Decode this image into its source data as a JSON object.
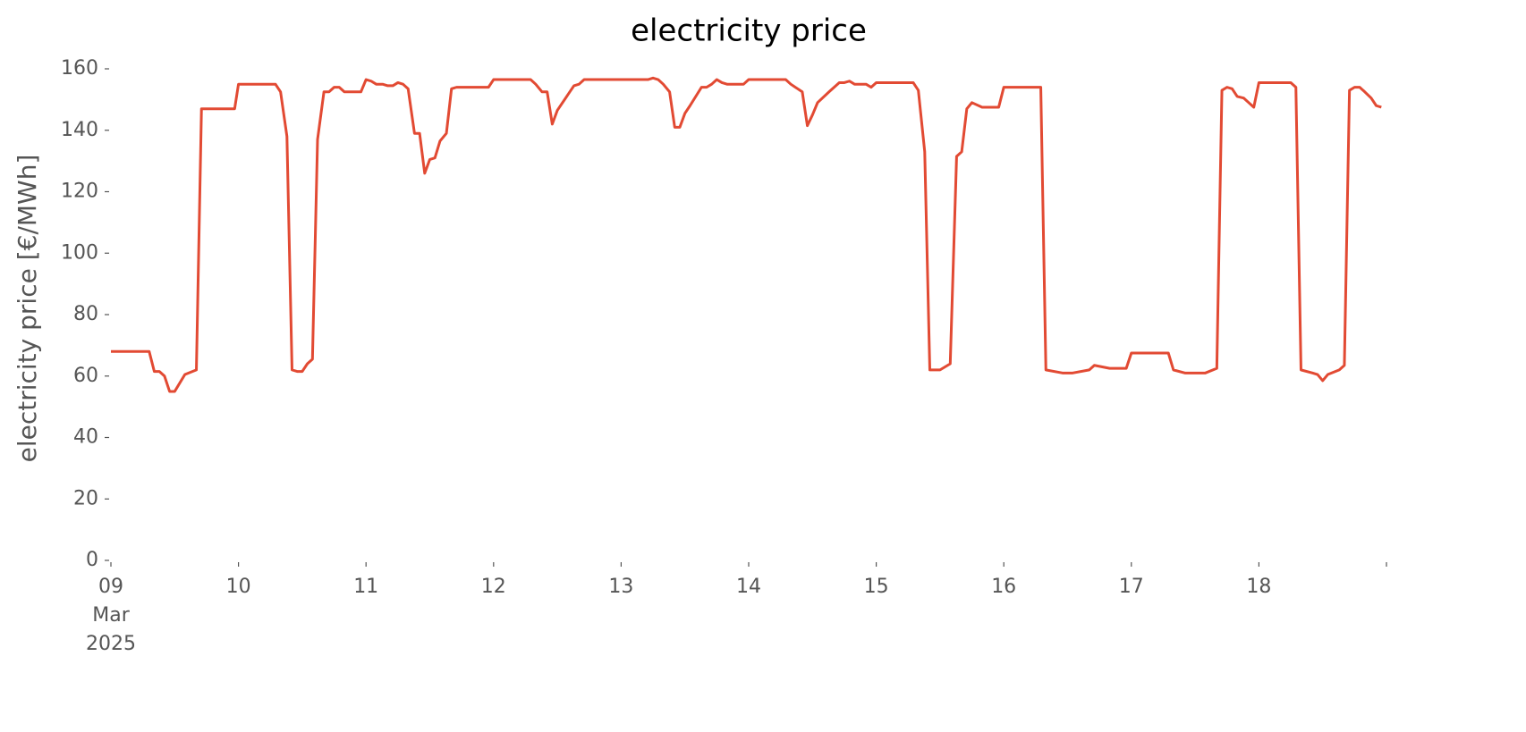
{
  "chart_data": {
    "type": "line",
    "title": "electricity price",
    "ylabel": "electricity price [€/MWh]",
    "x": [
      9.0,
      9.3,
      9.34,
      9.38,
      9.42,
      9.46,
      9.5,
      9.58,
      9.67,
      9.71,
      9.97,
      10.0,
      10.29,
      10.33,
      10.38,
      10.42,
      10.46,
      10.5,
      10.54,
      10.58,
      10.62,
      10.67,
      10.71,
      10.75,
      10.79,
      10.83,
      10.96,
      11.0,
      11.04,
      11.08,
      11.13,
      11.17,
      11.21,
      11.25,
      11.29,
      11.33,
      11.38,
      11.42,
      11.46,
      11.5,
      11.54,
      11.58,
      11.63,
      11.67,
      11.71,
      11.96,
      12.0,
      12.29,
      12.33,
      12.38,
      12.42,
      12.46,
      12.5,
      12.63,
      12.67,
      12.71,
      13.21,
      13.25,
      13.29,
      13.33,
      13.38,
      13.42,
      13.46,
      13.5,
      13.54,
      13.63,
      13.67,
      13.71,
      13.75,
      13.79,
      13.83,
      13.96,
      14.0,
      14.29,
      14.33,
      14.42,
      14.46,
      14.5,
      14.54,
      14.63,
      14.67,
      14.71,
      14.75,
      14.79,
      14.83,
      14.92,
      14.96,
      15.0,
      15.29,
      15.33,
      15.38,
      15.42,
      15.5,
      15.58,
      15.63,
      15.67,
      15.71,
      15.75,
      15.83,
      15.96,
      16.0,
      16.29,
      16.33,
      16.46,
      16.54,
      16.67,
      16.71,
      16.83,
      16.96,
      17.0,
      17.29,
      17.33,
      17.42,
      17.58,
      17.67,
      17.71,
      17.75,
      17.79,
      17.83,
      17.88,
      17.92,
      17.96,
      18.0,
      18.25,
      18.29,
      18.33,
      18.42,
      18.46,
      18.5,
      18.54,
      18.63,
      18.67,
      18.71,
      18.75,
      18.79,
      18.83,
      18.88,
      18.92,
      18.96
    ],
    "series": [
      {
        "name": "electricity price",
        "color": "#e24a33",
        "values": [
          68,
          68,
          61.5,
          61.5,
          60,
          55,
          55,
          60.5,
          62,
          147,
          147,
          155,
          155,
          152.5,
          138,
          62,
          61.5,
          61.5,
          64,
          65.5,
          137,
          152.5,
          152.5,
          154,
          154,
          152.5,
          152.5,
          156.5,
          156,
          155,
          155,
          154.5,
          154.5,
          155.5,
          155,
          153.5,
          139,
          139,
          126,
          130.5,
          131,
          136.5,
          139,
          153.5,
          154,
          154,
          156.5,
          156.5,
          155,
          152.5,
          152.5,
          142,
          146.5,
          154.5,
          155,
          156.5,
          156.5,
          157,
          156.5,
          155,
          152.5,
          141,
          141,
          145.5,
          148,
          154,
          154,
          155,
          156.5,
          155.5,
          155,
          155,
          156.5,
          156.5,
          155,
          152.5,
          141.5,
          145,
          149,
          152.5,
          154,
          155.5,
          155.5,
          156,
          155,
          155,
          154,
          155.5,
          155.5,
          153,
          133,
          62,
          62,
          64,
          131.5,
          133,
          147,
          149,
          147.5,
          147.5,
          154,
          154,
          62,
          61,
          61,
          62,
          63.5,
          62.5,
          62.5,
          67.5,
          67.5,
          62,
          61,
          61,
          62.5,
          153,
          154,
          153.5,
          151,
          150.5,
          149,
          147.5,
          155.5,
          155.5,
          154,
          62,
          61,
          60.5,
          58.5,
          60.5,
          62,
          63.5,
          153,
          154,
          154,
          152.5,
          150.5,
          148,
          147.5
        ]
      }
    ],
    "xlim": [
      9,
      19
    ],
    "xticks": [
      {
        "value": 9,
        "label": [
          "09",
          "Mar",
          "2025"
        ]
      },
      {
        "value": 10,
        "label": "10"
      },
      {
        "value": 11,
        "label": "11"
      },
      {
        "value": 12,
        "label": "12"
      },
      {
        "value": 13,
        "label": "13"
      },
      {
        "value": 14,
        "label": "14"
      },
      {
        "value": 15,
        "label": "15"
      },
      {
        "value": 16,
        "label": "16"
      },
      {
        "value": 17,
        "label": "17"
      },
      {
        "value": 18,
        "label": "18"
      }
    ],
    "ylim": [
      0,
      160
    ],
    "yticks": [
      0,
      20,
      40,
      60,
      80,
      100,
      120,
      140,
      160
    ],
    "grid": false
  }
}
